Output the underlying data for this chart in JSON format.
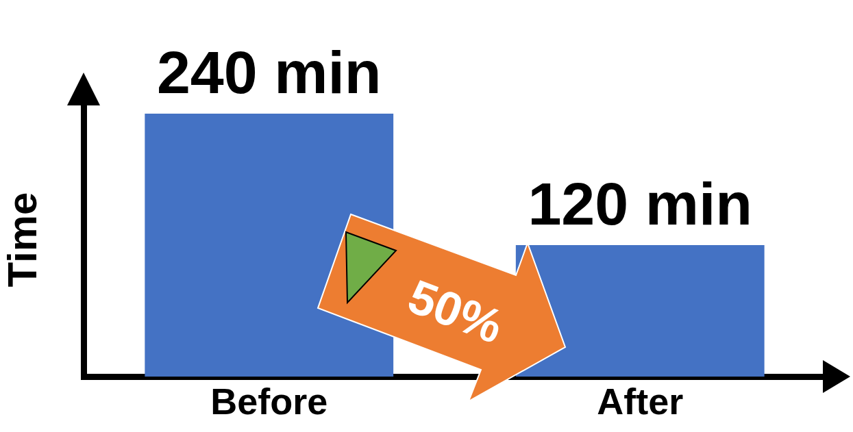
{
  "chart_data": {
    "type": "bar",
    "ylabel": "Time",
    "categories": [
      "Before",
      "After"
    ],
    "values": [
      240,
      120
    ],
    "color": "#4472c4",
    "value_labels": [
      "240 min",
      "120 min"
    ],
    "tick_labels": "x",
    "annotations": [
      "50%"
    ]
  }
}
